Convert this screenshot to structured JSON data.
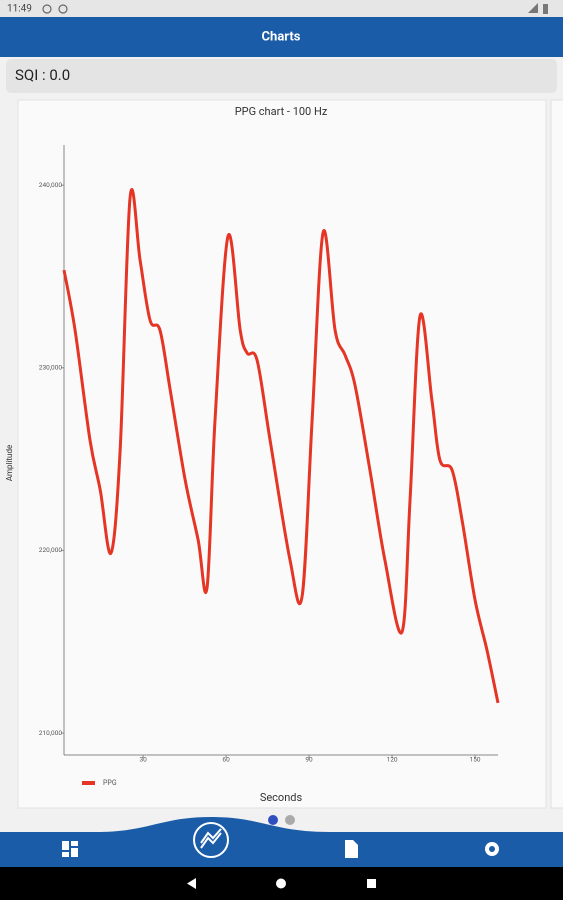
{
  "status_bar": {
    "time": "11:49"
  },
  "app_bar": {
    "title": "Charts"
  },
  "sqi": "SQI : 0.0",
  "chart_data": {
    "type": "line",
    "title": "PPG chart - 100 Hz",
    "x_label": "Seconds",
    "y_label": "Amplitude",
    "x": [
      1.4,
      5.4,
      10.8,
      14.5,
      18.4,
      21.7,
      25.3,
      28.9,
      32.5,
      36.1,
      39.8,
      45.2,
      49.9,
      53.1,
      56.0,
      60.7,
      65.1,
      67.6,
      71.2,
      75.9,
      83.1,
      87.5,
      91.1,
      95.1,
      99.4,
      103.0,
      106.6,
      112.0,
      117.4,
      123.6,
      126.5,
      130.1,
      134.4,
      137.3,
      141.7,
      145.3,
      150.0,
      154.3,
      158.3
    ],
    "series": [
      {
        "name": "PPG",
        "color": "#e53525",
        "values": [
          235350,
          232060,
          226040,
          223310,
          219860,
          225500,
          239340,
          235900,
          232610,
          232060,
          228780,
          223860,
          220570,
          217940,
          227140,
          237210,
          232060,
          230810,
          230420,
          226040,
          219480,
          217510,
          227140,
          237430,
          232060,
          230700,
          229050,
          224400,
          219480,
          215540,
          222760,
          232830,
          228230,
          224950,
          224400,
          221670,
          217290,
          214550,
          211650
        ]
      }
    ],
    "xlim": [
      1.4,
      158.3
    ],
    "ylim": [
      208800,
      242200
    ],
    "xticks": [
      30,
      60,
      90,
      120,
      150
    ],
    "yticks": [
      {
        "value": 210000,
        "label": "210,000"
      },
      {
        "value": 220000,
        "label": "220,000"
      },
      {
        "value": 230000,
        "label": "230,000"
      },
      {
        "value": 240000,
        "label": "240,000"
      }
    ],
    "grid": false,
    "legend": "bottom-left"
  }
}
